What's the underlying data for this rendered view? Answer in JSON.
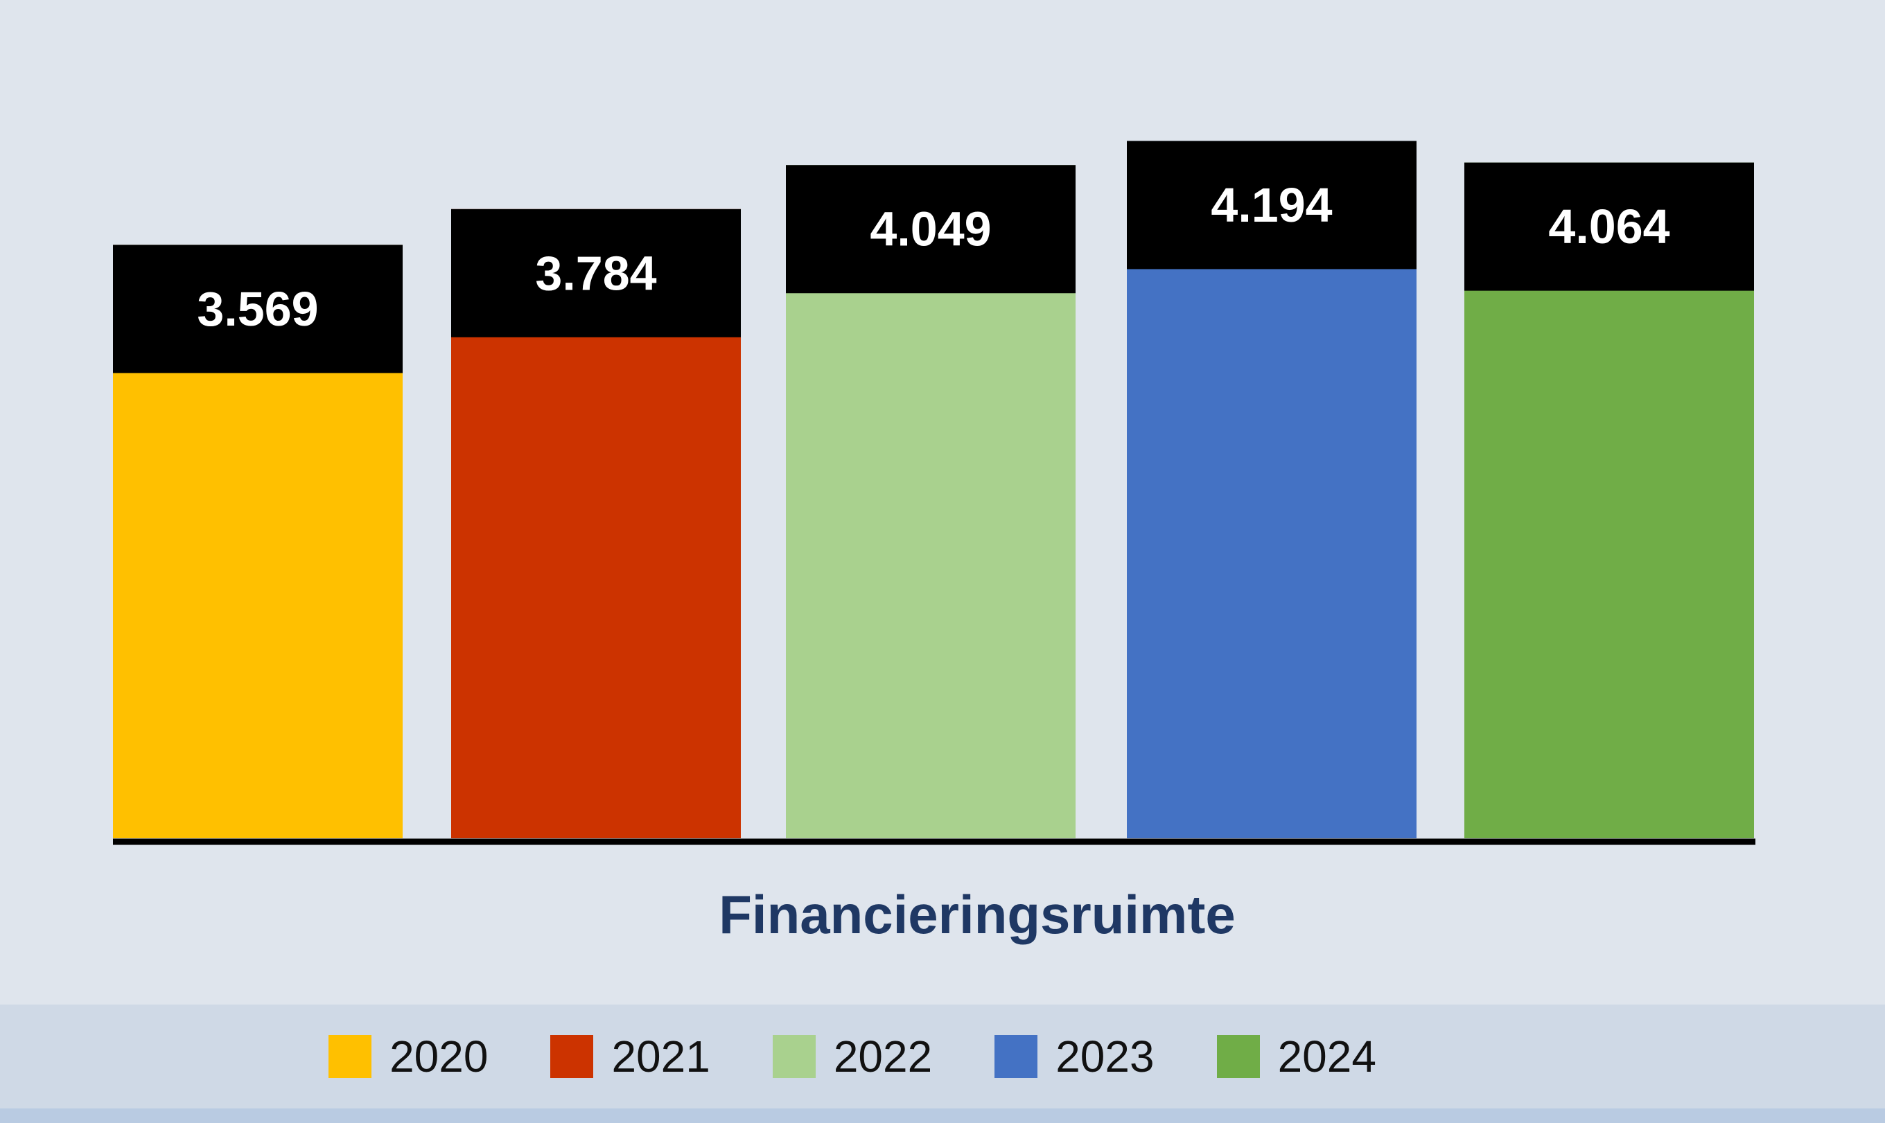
{
  "chart_data": {
    "type": "bar",
    "categories": [
      "Financieringsruimte"
    ],
    "series": [
      {
        "name": "2020",
        "value": 3569,
        "label": "3.569",
        "color": "#FFC000"
      },
      {
        "name": "2021",
        "value": 3784,
        "label": "3.784",
        "color": "#CC3300"
      },
      {
        "name": "2022",
        "value": 4049,
        "label": "4.049",
        "color": "#A9D18E"
      },
      {
        "name": "2023",
        "value": 4194,
        "label": "4.194",
        "color": "#4472C4"
      },
      {
        "name": "2024",
        "value": 4064,
        "label": "4.064",
        "color": "#70AD47"
      }
    ],
    "xlabel": "",
    "ylabel": "",
    "ylim": [
      0,
      4500
    ],
    "grid": false,
    "legend_position": "bottom",
    "label_box_color": "#000000"
  }
}
